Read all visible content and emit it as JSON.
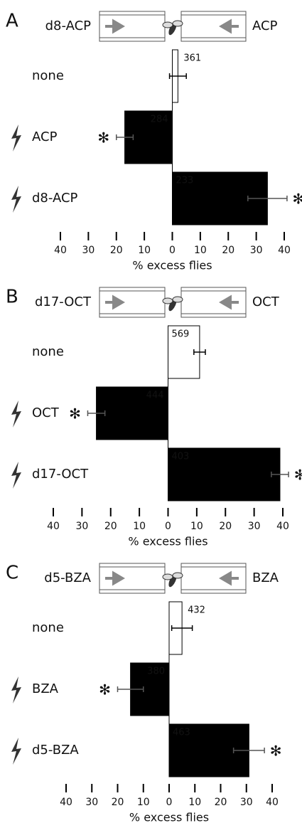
{
  "chart_data": [
    {
      "type": "bar",
      "panel_label": "A",
      "left_odor_label": "d8-ACP",
      "right_odor_label": "ACP",
      "categories": [
        "none",
        "ACP",
        "d8-ACP"
      ],
      "values": [
        2,
        -17,
        34
      ],
      "errors": [
        3,
        3,
        7
      ],
      "colors": [
        "#ffffff",
        "#000000",
        "#000000"
      ],
      "n_labels": [
        "361",
        "284",
        "233"
      ],
      "significance": [
        null,
        "✻",
        "✻"
      ],
      "xlabel": "% excess flies",
      "xlim": [
        -40,
        40
      ],
      "xticks": [
        {
          "value": -40,
          "label": "40"
        },
        {
          "value": -30,
          "label": "30"
        },
        {
          "value": -20,
          "label": "20"
        },
        {
          "value": -10,
          "label": "10"
        },
        0,
        10,
        20,
        30,
        40
      ]
    },
    {
      "type": "bar",
      "panel_label": "B",
      "left_odor_label": "d17-OCT",
      "right_odor_label": "OCT",
      "categories": [
        "none",
        "OCT",
        "d17-OCT"
      ],
      "values": [
        11,
        -25,
        39
      ],
      "errors": [
        2,
        3,
        3
      ],
      "colors": [
        "#ffffff",
        "#000000",
        "#000000"
      ],
      "n_labels": [
        "569",
        "444",
        "403"
      ],
      "significance": [
        null,
        "✻",
        "✻"
      ],
      "xlabel": "% excess flies",
      "xlim": [
        -40,
        40
      ],
      "xticks": [
        {
          "value": -40,
          "label": "40"
        },
        {
          "value": -30,
          "label": "30"
        },
        {
          "value": -20,
          "label": "20"
        },
        {
          "value": -10,
          "label": "10"
        },
        0,
        10,
        20,
        30,
        40
      ]
    },
    {
      "type": "bar",
      "panel_label": "C",
      "left_odor_label": "d5-BZA",
      "right_odor_label": "BZA",
      "categories": [
        "none",
        "BZA",
        "d5-BZA"
      ],
      "values": [
        5,
        -15,
        31
      ],
      "errors": [
        4,
        5,
        6
      ],
      "colors": [
        "#ffffff",
        "#000000",
        "#000000"
      ],
      "n_labels": [
        "432",
        "380",
        "463"
      ],
      "significance": [
        null,
        "✻",
        "✻"
      ],
      "xlabel": "% excess flies",
      "xlim": [
        -40,
        40
      ],
      "xticks": [
        {
          "value": -40,
          "label": "40"
        },
        {
          "value": -30,
          "label": "30"
        },
        {
          "value": -20,
          "label": "20"
        },
        {
          "value": -10,
          "label": "10"
        },
        0,
        10,
        20,
        30,
        40
      ]
    }
  ]
}
